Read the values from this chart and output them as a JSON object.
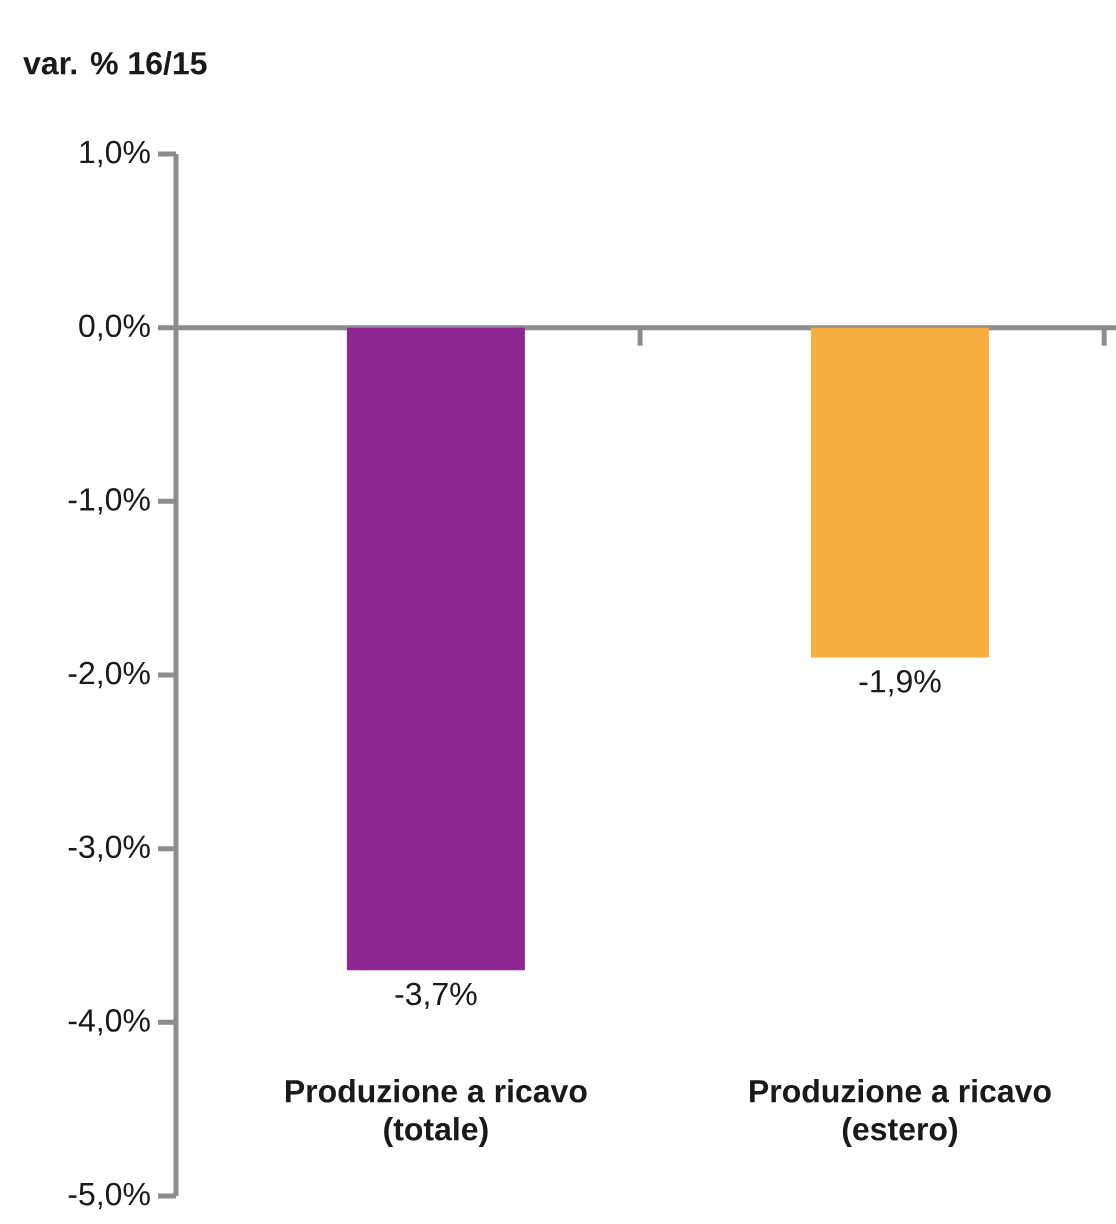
{
  "chart_data": {
    "type": "bar",
    "ylabel": "var. % 16/15",
    "categories": [
      "Produzione a ricavo (totale)",
      "Produzione a ricavo (estero)"
    ],
    "values": [
      -3.7,
      -1.9
    ],
    "colors": [
      "#8e278f",
      "#f9ae41"
    ],
    "value_labels": [
      "-3,7%",
      "-1,9%"
    ],
    "ylim": [
      -5,
      1
    ],
    "yticks": [
      {
        "value": 1,
        "label": "1,0%"
      },
      {
        "value": 0,
        "label": "0,0%"
      },
      {
        "value": -1,
        "label": "-1,0%"
      },
      {
        "value": -2,
        "label": "-2,0%"
      },
      {
        "value": -3,
        "label": "-3,0%"
      },
      {
        "value": -4,
        "label": "-4,0%"
      },
      {
        "value": -5,
        "label": "-5,0%"
      }
    ]
  }
}
